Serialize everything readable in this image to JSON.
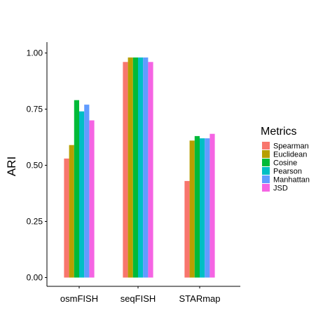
{
  "chart_data": {
    "type": "bar",
    "title": "",
    "xlabel": "",
    "ylabel": "ARI",
    "ylim": [
      0,
      1.05
    ],
    "yticks": [
      "0.00",
      "0.25",
      "0.50",
      "0.75",
      "1.00"
    ],
    "grid": false,
    "legend_position": "right",
    "legend_title": "Metrics",
    "categories": [
      "osmFISH",
      "seqFISH",
      "STARmap"
    ],
    "series": [
      {
        "name": "Spearman",
        "color": "#F8766D",
        "values": [
          0.53,
          0.96,
          0.43
        ]
      },
      {
        "name": "Euclidean",
        "color": "#B79F00",
        "values": [
          0.59,
          0.98,
          0.61
        ]
      },
      {
        "name": "Cosine",
        "color": "#00BA38",
        "values": [
          0.79,
          0.98,
          0.63
        ]
      },
      {
        "name": "Pearson",
        "color": "#00BFC4",
        "values": [
          0.74,
          0.98,
          0.62
        ]
      },
      {
        "name": "Manhattan",
        "color": "#619CFF",
        "values": [
          0.77,
          0.98,
          0.62
        ]
      },
      {
        "name": "JSD",
        "color": "#F564E3",
        "values": [
          0.7,
          0.96,
          0.64
        ]
      }
    ]
  }
}
